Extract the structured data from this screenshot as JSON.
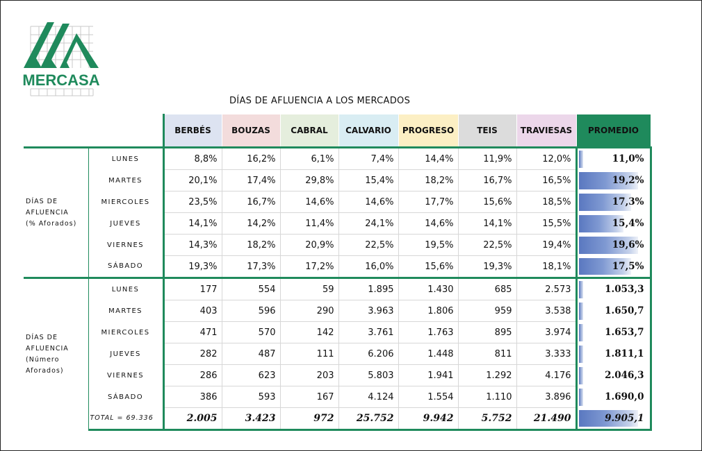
{
  "logo": {
    "text": "MERCASA",
    "color": "#1f8a5c"
  },
  "title": "DÍAS DE AFLUENCIA A LOS MERCADOS",
  "headers": [
    "BERBÉS",
    "BOUZAS",
    "CABRAL",
    "CALVARIO",
    "PROGRESO",
    "TEIS",
    "TRAVIESAS",
    "PROMEDIO"
  ],
  "groups": [
    {
      "label_lines": [
        "DÍAS DE",
        "AFLUENCIA",
        "(% Aforados)"
      ],
      "rows": [
        {
          "day": "LUNES",
          "values": [
            "8,8%",
            "16,2%",
            "6,1%",
            "7,4%",
            "14,4%",
            "11,9%",
            "12,0%"
          ],
          "promedio": "11,0%",
          "level": 0.05
        },
        {
          "day": "MARTES",
          "values": [
            "20,1%",
            "17,4%",
            "29,8%",
            "15,4%",
            "18,2%",
            "16,7%",
            "16,5%"
          ],
          "promedio": "19,2%",
          "level": 0.9
        },
        {
          "day": "MIERCOLES",
          "values": [
            "23,5%",
            "16,7%",
            "14,6%",
            "14,6%",
            "17,7%",
            "15,6%",
            "18,5%"
          ],
          "promedio": "17,3%",
          "level": 0.8
        },
        {
          "day": "JUEVES",
          "values": [
            "14,1%",
            "14,2%",
            "11,4%",
            "24,1%",
            "14,6%",
            "14,1%",
            "15,5%"
          ],
          "promedio": "15,4%",
          "level": 0.7
        },
        {
          "day": "VIERNES",
          "values": [
            "14,3%",
            "18,2%",
            "20,9%",
            "22,5%",
            "19,5%",
            "22,5%",
            "19,4%"
          ],
          "promedio": "19,6%",
          "level": 0.9
        },
        {
          "day": "SÁBADO",
          "values": [
            "19,3%",
            "17,3%",
            "17,2%",
            "16,0%",
            "15,6%",
            "19,3%",
            "18,1%"
          ],
          "promedio": "17,5%",
          "level": 0.8
        }
      ]
    },
    {
      "label_lines": [
        "DÍAS DE",
        "AFLUENCIA",
        "(Número",
        "Aforados)"
      ],
      "rows": [
        {
          "day": "LUNES",
          "values": [
            "177",
            "554",
            "59",
            "1.895",
            "1.430",
            "685",
            "2.573"
          ],
          "promedio": "1.053,3",
          "level": 0.05
        },
        {
          "day": "MARTES",
          "values": [
            "403",
            "596",
            "290",
            "3.963",
            "1.806",
            "959",
            "3.538"
          ],
          "promedio": "1.650,7",
          "level": 0.05
        },
        {
          "day": "MIERCOLES",
          "values": [
            "471",
            "570",
            "142",
            "3.761",
            "1.763",
            "895",
            "3.974"
          ],
          "promedio": "1.653,7",
          "level": 0.05
        },
        {
          "day": "JUEVES",
          "values": [
            "282",
            "487",
            "111",
            "6.206",
            "1.448",
            "811",
            "3.333"
          ],
          "promedio": "1.811,1",
          "level": 0.05
        },
        {
          "day": "VIERNES",
          "values": [
            "286",
            "623",
            "203",
            "5.803",
            "1.941",
            "1.292",
            "4.176"
          ],
          "promedio": "2.046,3",
          "level": 0.05
        },
        {
          "day": "SÁBADO",
          "values": [
            "386",
            "593",
            "167",
            "4.124",
            "1.554",
            "1.110",
            "3.896"
          ],
          "promedio": "1.690,0",
          "level": 0.05
        }
      ]
    }
  ],
  "total": {
    "label": "TOTAL = 69.336",
    "values": [
      "2.005",
      "3.423",
      "972",
      "25.752",
      "9.942",
      "5.752",
      "21.490"
    ],
    "promedio": "9.905,1",
    "level": 0.9
  },
  "colors": {
    "accent": "#1f8a5c",
    "bar": "#5a78c0"
  }
}
